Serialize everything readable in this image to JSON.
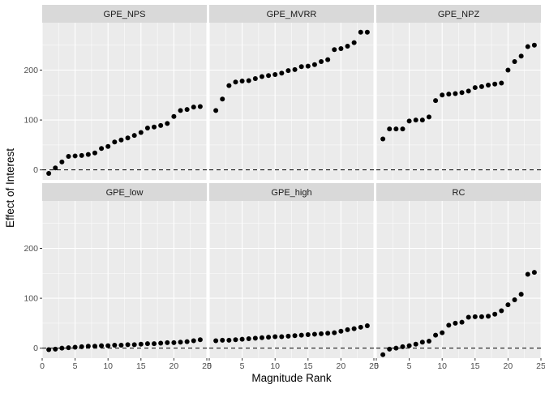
{
  "chart_data": {
    "type": "scatter",
    "layout": "facet-grid-2x3",
    "xlabel": "Magnitude Rank",
    "ylabel": "Effect of Interest",
    "xlim": [
      0,
      25
    ],
    "ylim": [
      -20,
      295
    ],
    "x_ticks": [
      0,
      5,
      10,
      15,
      20,
      25
    ],
    "y_ticks": [
      0,
      100,
      200
    ],
    "reference_line": {
      "y": 0,
      "style": "dashed"
    },
    "grid": true,
    "colors": {
      "panel_bg": "#ebebeb",
      "strip_bg": "#d9d9d9",
      "grid": "#ffffff",
      "point": "#000000"
    },
    "facets": [
      {
        "name": "GPE_NPS",
        "x": [
          1,
          2,
          3,
          4,
          5,
          6,
          7,
          8,
          9,
          10,
          11,
          12,
          13,
          14,
          15,
          16,
          17,
          18,
          19,
          20,
          21,
          22,
          23,
          24
        ],
        "y": [
          -7,
          4,
          16,
          27,
          28,
          29,
          31,
          34,
          43,
          47,
          56,
          60,
          64,
          69,
          75,
          84,
          86,
          89,
          93,
          107,
          119,
          121,
          126,
          127
        ]
      },
      {
        "name": "GPE_MVRR",
        "x": [
          1,
          2,
          3,
          4,
          5,
          6,
          7,
          8,
          9,
          10,
          11,
          12,
          13,
          14,
          15,
          16,
          17,
          18,
          19,
          20,
          21,
          22,
          23,
          24
        ],
        "y": [
          119,
          142,
          169,
          176,
          178,
          179,
          183,
          187,
          189,
          191,
          194,
          199,
          201,
          207,
          208,
          211,
          217,
          221,
          241,
          243,
          248,
          255,
          276,
          276
        ]
      },
      {
        "name": "GPE_NPZ",
        "x": [
          1,
          2,
          3,
          4,
          5,
          6,
          7,
          8,
          9,
          10,
          11,
          12,
          13,
          14,
          15,
          16,
          17,
          18,
          19,
          20,
          21,
          22,
          23,
          24
        ],
        "y": [
          62,
          82,
          82,
          82,
          98,
          100,
          100,
          106,
          139,
          150,
          152,
          153,
          155,
          158,
          165,
          167,
          170,
          172,
          174,
          200,
          217,
          228,
          247,
          250
        ]
      },
      {
        "name": "GPE_low",
        "x": [
          1,
          2,
          3,
          4,
          5,
          6,
          7,
          8,
          9,
          10,
          11,
          12,
          13,
          14,
          15,
          16,
          17,
          18,
          19,
          20,
          21,
          22,
          23,
          24
        ],
        "y": [
          -3,
          -2,
          0,
          1,
          2,
          3,
          4,
          4,
          5,
          5,
          6,
          6,
          7,
          7,
          8,
          9,
          9,
          10,
          11,
          11,
          12,
          13,
          15,
          17
        ]
      },
      {
        "name": "GPE_high",
        "x": [
          1,
          2,
          3,
          4,
          5,
          6,
          7,
          8,
          9,
          10,
          11,
          12,
          13,
          14,
          15,
          16,
          17,
          18,
          19,
          20,
          21,
          22,
          23,
          24
        ],
        "y": [
          15,
          16,
          16,
          17,
          18,
          19,
          20,
          21,
          22,
          23,
          23,
          24,
          25,
          26,
          27,
          28,
          29,
          30,
          31,
          34,
          37,
          39,
          42,
          45
        ]
      },
      {
        "name": "RC",
        "x": [
          1,
          2,
          3,
          4,
          5,
          6,
          7,
          8,
          9,
          10,
          11,
          12,
          13,
          14,
          15,
          16,
          17,
          18,
          19,
          20,
          21,
          22,
          23,
          24
        ],
        "y": [
          -13,
          -2,
          0,
          3,
          5,
          8,
          12,
          14,
          26,
          31,
          46,
          50,
          52,
          62,
          63,
          63,
          64,
          68,
          75,
          87,
          97,
          108,
          148,
          152
        ]
      }
    ]
  }
}
